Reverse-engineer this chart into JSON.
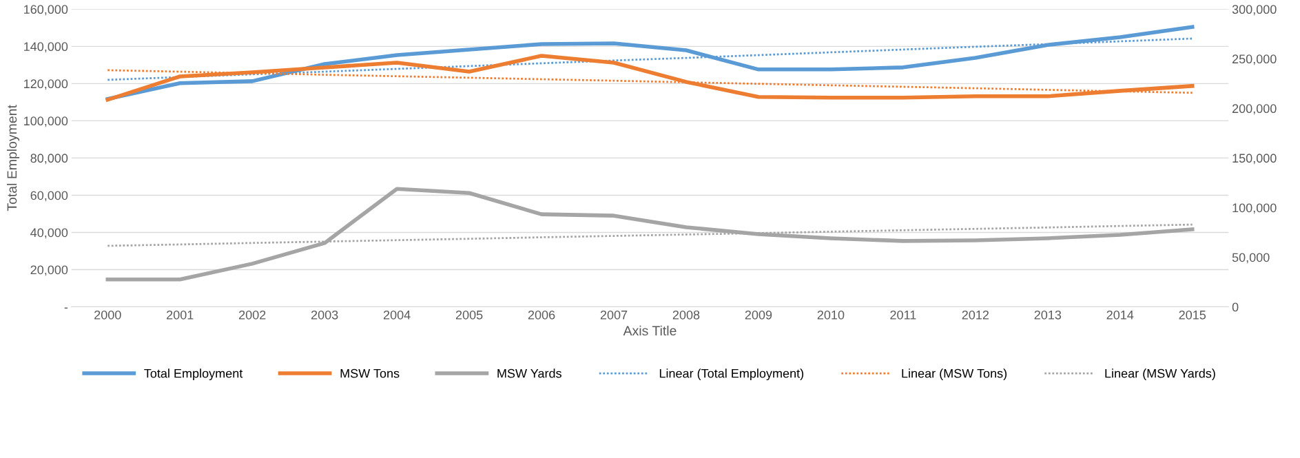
{
  "chart_data": {
    "type": "line",
    "xlabel": "Axis Title",
    "ylabel": "Total Employment",
    "categories": [
      "2000",
      "2001",
      "2002",
      "2003",
      "2004",
      "2005",
      "2006",
      "2007",
      "2008",
      "2009",
      "2010",
      "2011",
      "2012",
      "2013",
      "2014",
      "2015"
    ],
    "series": [
      {
        "name": "Total Employment",
        "color": "#5b9bd5",
        "values": [
          111700,
          120200,
          121300,
          130500,
          135300,
          138300,
          141200,
          141600,
          137900,
          127600,
          127600,
          128700,
          133800,
          140800,
          144900,
          150400
        ]
      },
      {
        "name": "MSW Tons",
        "color": "#ed7d31",
        "axis": "y2",
        "values": [
          208700,
          232200,
          236400,
          241200,
          246100,
          237100,
          253000,
          246100,
          226700,
          211500,
          210800,
          210800,
          212200,
          212200,
          217700,
          222600
        ]
      },
      {
        "name": "MSW Yards",
        "color": "#a5a5a5",
        "axis": "y2",
        "values": [
          27600,
          27600,
          43500,
          64300,
          118900,
          114700,
          93300,
          91900,
          80200,
          73300,
          69100,
          66400,
          67000,
          69100,
          72600,
          78100
        ]
      },
      {
        "name": "Linear (Total Employment)",
        "color": "#5b9bd5",
        "line_style": "dotted",
        "values": [
          122000,
          123500,
          125000,
          126400,
          127900,
          129400,
          130900,
          132400,
          133800,
          135300,
          136800,
          138300,
          139800,
          141200,
          142700,
          144200
        ]
      },
      {
        "name": "Linear (MSW Tons)",
        "color": "#ed7d31",
        "line_style": "dotted",
        "axis": "y2",
        "values": [
          238500,
          237000,
          235500,
          233900,
          232400,
          230900,
          229400,
          227900,
          226300,
          224800,
          223300,
          221800,
          220300,
          218700,
          217200,
          215700
        ]
      },
      {
        "name": "Linear (MSW Yards)",
        "color": "#a5a5a5",
        "line_style": "dotted",
        "axis": "y2",
        "values": [
          61500,
          62900,
          64400,
          65800,
          67200,
          68600,
          70100,
          71500,
          72900,
          74300,
          75800,
          77200,
          78600,
          80000,
          81500,
          82900
        ]
      }
    ],
    "ylim": [
      0,
      160000
    ],
    "yticks": [
      {
        "value": 0,
        "label": "-"
      },
      {
        "value": 20000,
        "label": "20,000"
      },
      {
        "value": 40000,
        "label": "40,000"
      },
      {
        "value": 60000,
        "label": "60,000"
      },
      {
        "value": 80000,
        "label": "80,000"
      },
      {
        "value": 100000,
        "label": "100,000"
      },
      {
        "value": 120000,
        "label": "120,000"
      },
      {
        "value": 140000,
        "label": "140,000"
      },
      {
        "value": 160000,
        "label": "160,000"
      }
    ],
    "y2lim": [
      0,
      300000
    ],
    "y2ticks": [
      0,
      {
        "value": 50000,
        "label": "50,000"
      },
      {
        "value": 100000,
        "label": "100,000"
      },
      {
        "value": 150000,
        "label": "150,000"
      },
      {
        "value": 200000,
        "label": "200,000"
      },
      {
        "value": 250000,
        "label": "250,000"
      },
      {
        "value": 300000,
        "label": "300,000"
      }
    ],
    "grid": "y",
    "legend": "bottom",
    "marker": "none",
    "line_style": "solid"
  }
}
